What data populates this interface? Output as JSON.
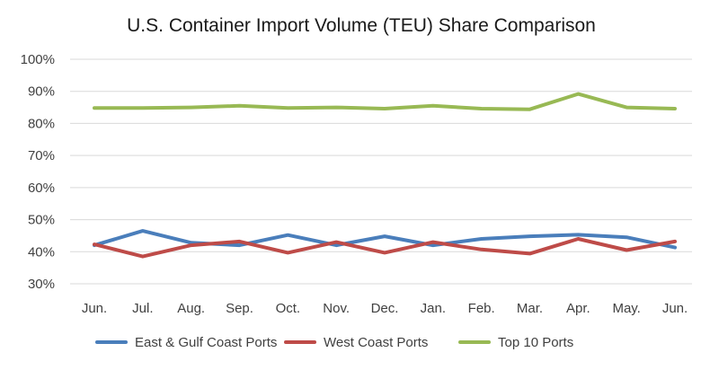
{
  "chart_data": {
    "type": "line",
    "title": "U.S. Container Import Volume (TEU) Share Comparison",
    "xlabel": "",
    "ylabel": "",
    "ylim": [
      30,
      100
    ],
    "yticks": [
      "100%",
      "90%",
      "80%",
      "70%",
      "60%",
      "50%",
      "40%",
      "30%"
    ],
    "ytick_values": [
      100,
      90,
      80,
      70,
      60,
      50,
      40,
      30
    ],
    "grid": true,
    "legend_position": "bottom",
    "categories": [
      "Jun.",
      "Jul.",
      "Aug.",
      "Sep.",
      "Oct.",
      "Nov.",
      "Dec.",
      "Jan.",
      "Feb.",
      "Mar.",
      "Apr.",
      "May.",
      "Jun."
    ],
    "series": [
      {
        "name": "East & Gulf Coast Ports",
        "color": "#4a7ebb",
        "values": [
          42.0,
          46.5,
          42.8,
          42.0,
          45.2,
          42.0,
          44.8,
          42.0,
          44.0,
          44.8,
          45.3,
          44.5,
          41.3
        ]
      },
      {
        "name": "West Coast Ports",
        "color": "#be4b48",
        "values": [
          42.3,
          38.5,
          42.0,
          43.2,
          39.7,
          43.0,
          39.7,
          43.0,
          40.7,
          39.4,
          44.0,
          40.5,
          43.2
        ]
      },
      {
        "name": "Top 10 Ports",
        "color": "#98b954",
        "values": [
          84.8,
          84.8,
          85.0,
          85.5,
          84.8,
          85.0,
          84.6,
          85.5,
          84.6,
          84.4,
          89.2,
          85.0,
          84.6
        ]
      }
    ]
  }
}
